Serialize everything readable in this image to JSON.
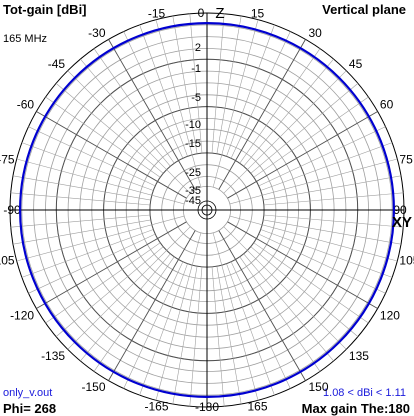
{
  "header": {
    "title_left": "Tot-gain [dBi]",
    "title_right": "Vertical plane",
    "frequency": "165 MHz"
  },
  "footer": {
    "filename": "only_v.out",
    "phi": "Phi= 268",
    "gain_range": "1.08 < dBi < 1.11",
    "max_gain": "Max gain The:180"
  },
  "colors": {
    "pattern": "#0000d0",
    "grid": "#a0a0a0",
    "axis": "#000000",
    "label_blue": "#1a1adb"
  },
  "chart_data": {
    "type": "polar",
    "plane": "vertical",
    "axis_labels": {
      "top": "Z",
      "right": "XY"
    },
    "radial_ticks": [
      2,
      -1,
      -5,
      -10,
      -15,
      -25,
      -35,
      -45
    ],
    "radial_tick_labels": [
      "2",
      "-1",
      "-5",
      "-10",
      "-15",
      "-25",
      "-35",
      "-45"
    ],
    "angle_tick_labels": [
      {
        "angle": 0,
        "label": "0"
      },
      {
        "angle": 15,
        "label": "15"
      },
      {
        "angle": 30,
        "label": "30"
      },
      {
        "angle": 45,
        "label": "45"
      },
      {
        "angle": 60,
        "label": "60"
      },
      {
        "angle": 75,
        "label": "75"
      },
      {
        "angle": 90,
        "label": "90"
      },
      {
        "angle": 105,
        "label": "105"
      },
      {
        "angle": 120,
        "label": "120"
      },
      {
        "angle": 135,
        "label": "135"
      },
      {
        "angle": 150,
        "label": "150"
      },
      {
        "angle": 165,
        "label": "165"
      },
      {
        "angle": 180,
        "label": "-180"
      },
      {
        "angle": 195,
        "label": "-165"
      },
      {
        "angle": 210,
        "label": "-150"
      },
      {
        "angle": 225,
        "label": "-135"
      },
      {
        "angle": 240,
        "label": "-120"
      },
      {
        "angle": 255,
        "label": "-105"
      },
      {
        "angle": 270,
        "label": "-90"
      },
      {
        "angle": 285,
        "label": "-75"
      },
      {
        "angle": 300,
        "label": "-60"
      },
      {
        "angle": 315,
        "label": "-45"
      },
      {
        "angle": 330,
        "label": "-30"
      },
      {
        "angle": 345,
        "label": "-15"
      }
    ],
    "series": [
      {
        "gain_min_dbi": 1.08,
        "gain_max_dbi": 1.11,
        "pattern": "omnidirectional"
      }
    ]
  }
}
